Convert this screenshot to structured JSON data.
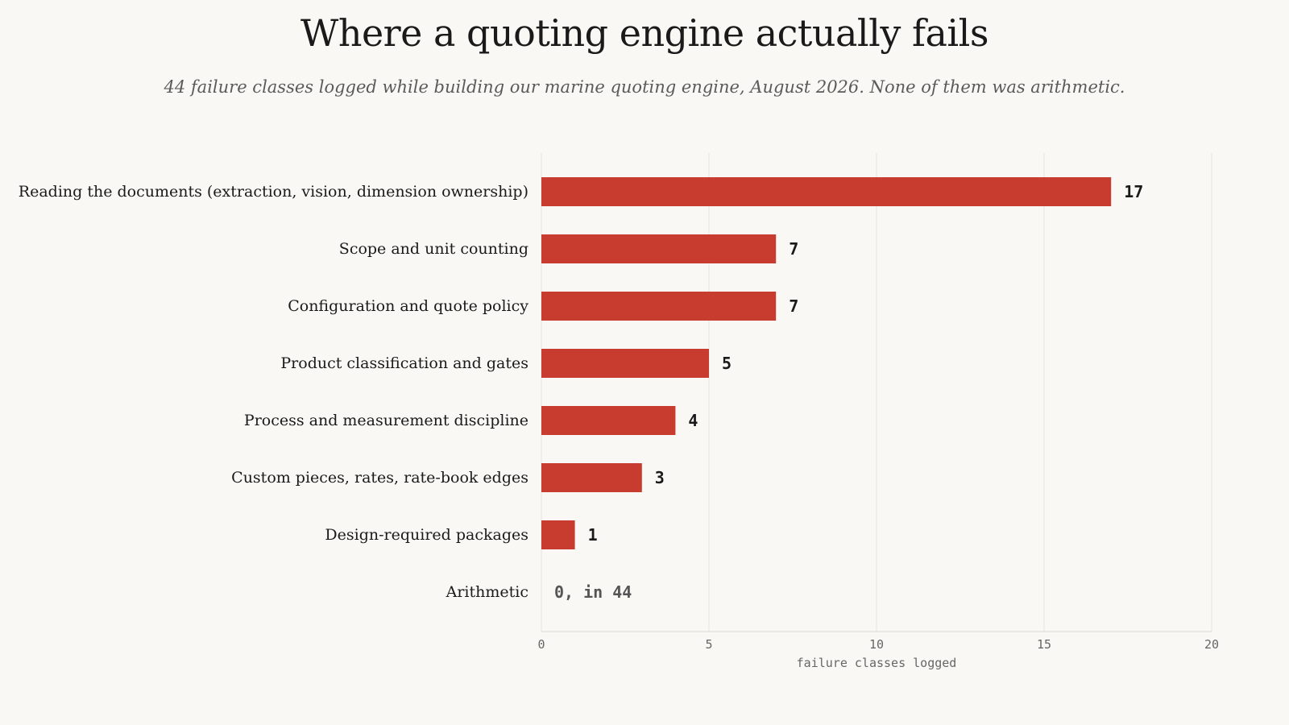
{
  "header": {
    "title": "Where a quoting engine actually fails",
    "subtitle": "44 failure classes logged while building our marine quoting engine, August 2026. None of them was arithmetic."
  },
  "chart_data": {
    "type": "bar",
    "orientation": "horizontal",
    "categories": [
      "Reading the documents (extraction, vision, dimension ownership)",
      "Scope and unit counting",
      "Configuration and quote policy",
      "Product classification and gates",
      "Process and measurement discipline",
      "Custom pieces, rates, rate-book edges",
      "Design-required packages",
      "Arithmetic"
    ],
    "values": [
      17,
      7,
      7,
      5,
      4,
      3,
      1,
      0
    ],
    "value_labels": [
      "17",
      "7",
      "7",
      "5",
      "4",
      "3",
      "1",
      "0, in 44"
    ],
    "xlabel": "failure classes logged",
    "xlim": [
      0,
      20
    ],
    "xticks": [
      0,
      5,
      10,
      15,
      20
    ],
    "grid": "vertical",
    "bar_color": "#c83c2f",
    "grid_color": "#e6e3dd"
  }
}
